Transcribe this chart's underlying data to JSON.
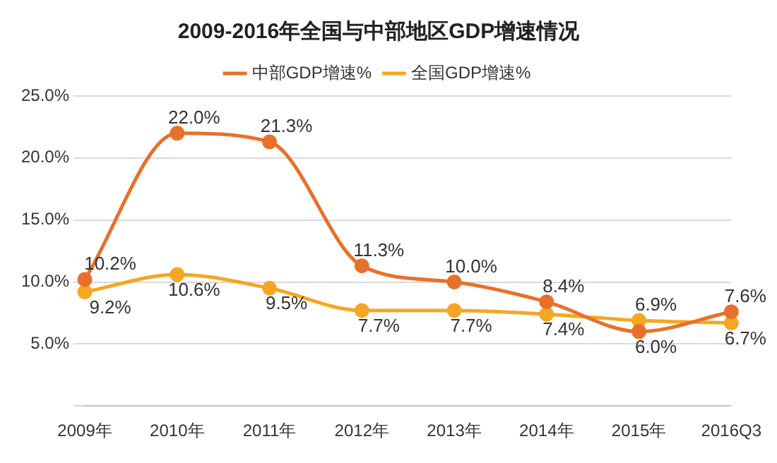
{
  "chart_data": {
    "type": "line",
    "title": "2009-2016年全国与中部地区GDP增速情况",
    "categories": [
      "2009年",
      "2010年",
      "2011年",
      "2012年",
      "2013年",
      "2014年",
      "2015年",
      "2016Q3"
    ],
    "series": [
      {
        "name": "中部GDP增速%",
        "color": "#e8702a",
        "values": [
          10.2,
          22.0,
          21.3,
          11.3,
          10.0,
          8.4,
          6.0,
          7.6
        ],
        "value_labels": [
          "10.2%",
          "22.0%",
          "21.3%",
          "11.3%",
          "10.0%",
          "8.4%",
          "6.0%",
          "7.6%"
        ]
      },
      {
        "name": "全国GDP增速%",
        "color": "#f5a623",
        "values": [
          9.2,
          10.6,
          9.5,
          7.7,
          7.7,
          7.4,
          6.9,
          6.7
        ],
        "value_labels": [
          "9.2%",
          "10.6%",
          "9.5%",
          "7.7%",
          "7.7%",
          "7.4%",
          "6.9%",
          "6.7%"
        ]
      }
    ],
    "ylim": [
      0,
      25
    ],
    "yticks": [
      {
        "value": 0,
        "label": null
      },
      {
        "value": 5,
        "label": "5.0%"
      },
      {
        "value": 10,
        "label": "10.0%"
      },
      {
        "value": 15,
        "label": "15.0%"
      },
      {
        "value": 20,
        "label": "20.0%"
      },
      {
        "value": 25,
        "label": "25.0%"
      }
    ],
    "grid": "y",
    "legend": "top",
    "marker": "circle",
    "line_style": "solid"
  }
}
